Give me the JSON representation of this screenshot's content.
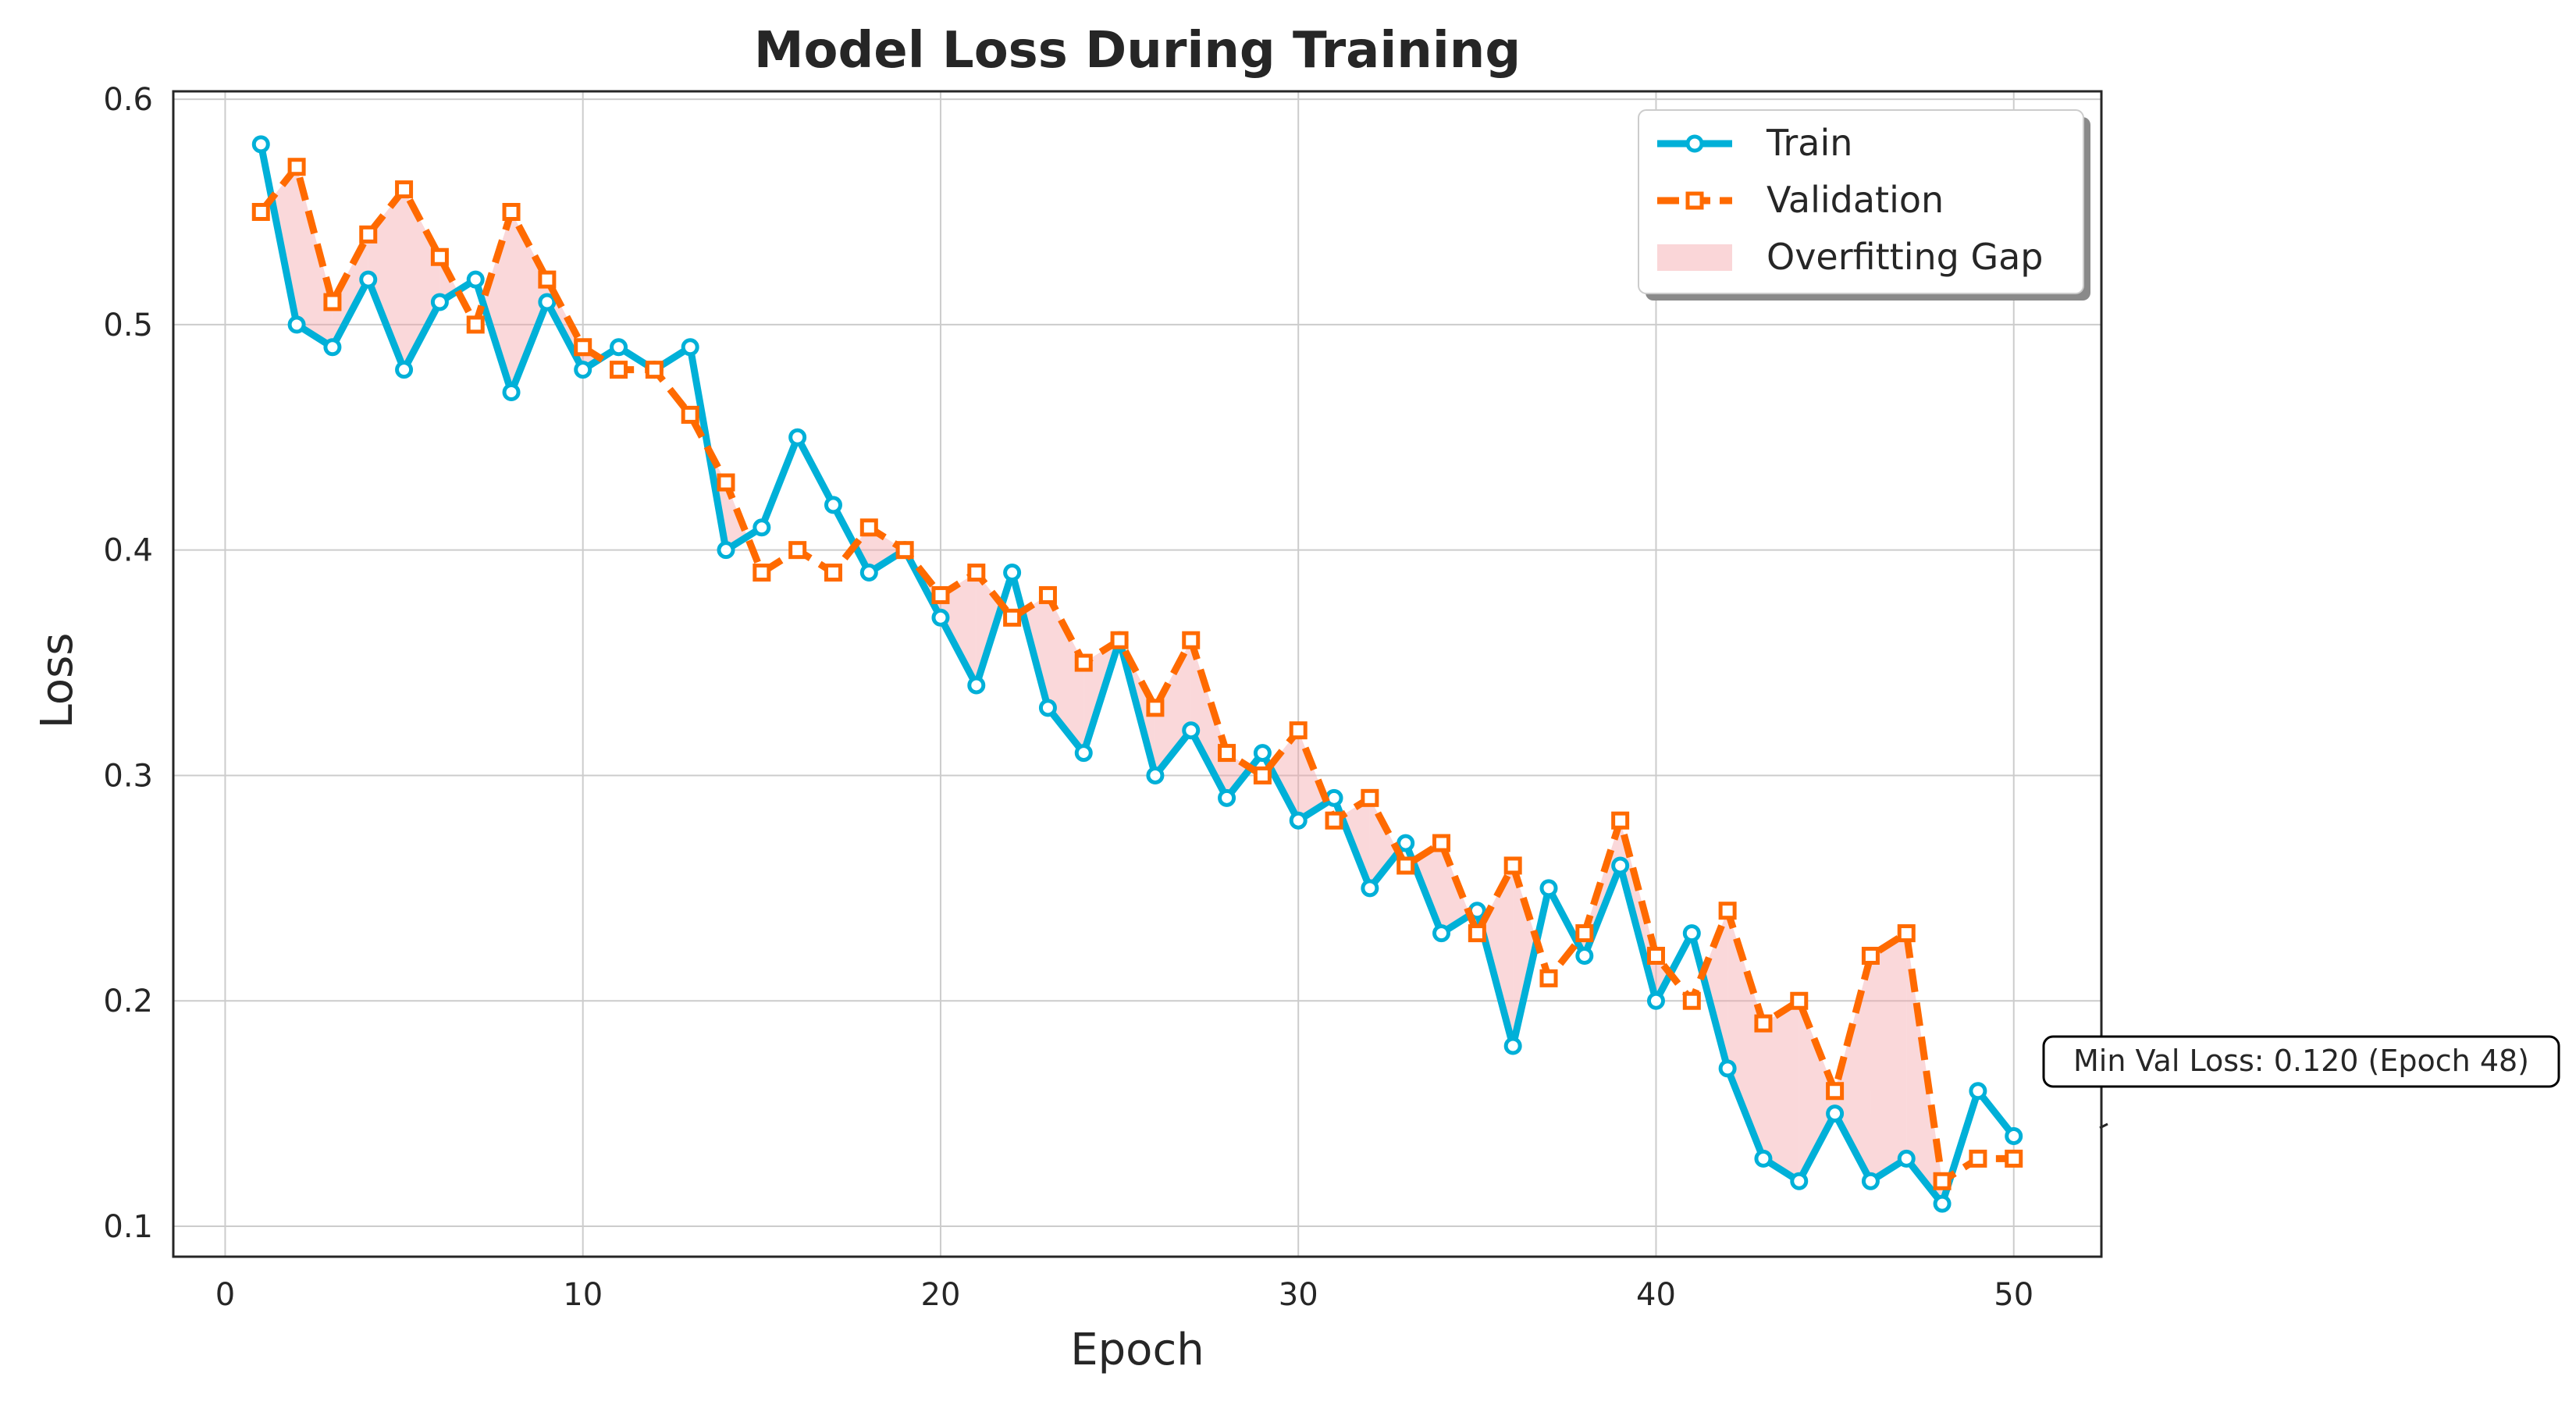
{
  "chart_data": {
    "type": "line",
    "title": "Model Loss During Training",
    "xlabel": "Epoch",
    "ylabel": "Loss",
    "xlim": [
      -1.45,
      52.45
    ],
    "ylim": [
      0.0865,
      0.6035
    ],
    "xticks": [
      0,
      10,
      20,
      30,
      40,
      50
    ],
    "yticks": [
      0.1,
      0.2,
      0.3,
      0.4,
      0.5,
      0.6
    ],
    "xtick_labels": [
      "0",
      "10",
      "20",
      "30",
      "40",
      "50"
    ],
    "ytick_labels": [
      "0.1",
      "0.2",
      "0.3",
      "0.4",
      "0.5",
      "0.6"
    ],
    "grid": true,
    "legend_position": "top-right",
    "x": [
      1,
      2,
      3,
      4,
      5,
      6,
      7,
      8,
      9,
      10,
      11,
      12,
      13,
      14,
      15,
      16,
      17,
      18,
      19,
      20,
      21,
      22,
      23,
      24,
      25,
      26,
      27,
      28,
      29,
      30,
      31,
      32,
      33,
      34,
      35,
      36,
      37,
      38,
      39,
      40,
      41,
      42,
      43,
      44,
      45,
      46,
      47,
      48,
      49,
      50
    ],
    "series": [
      {
        "name": "Train",
        "color": "#00b0d8",
        "marker": "circle",
        "values": [
          0.58,
          0.5,
          0.49,
          0.52,
          0.48,
          0.51,
          0.52,
          0.47,
          0.51,
          0.48,
          0.49,
          0.48,
          0.49,
          0.4,
          0.41,
          0.45,
          0.42,
          0.39,
          0.4,
          0.37,
          0.34,
          0.39,
          0.33,
          0.31,
          0.36,
          0.3,
          0.32,
          0.29,
          0.31,
          0.28,
          0.29,
          0.25,
          0.27,
          0.23,
          0.24,
          0.18,
          0.25,
          0.22,
          0.26,
          0.2,
          0.23,
          0.17,
          0.13,
          0.12,
          0.15,
          0.12,
          0.13,
          0.11,
          0.16,
          0.14
        ]
      },
      {
        "name": "Validation",
        "color": "#ff6a00",
        "marker": "square",
        "values": [
          0.55,
          0.57,
          0.51,
          0.54,
          0.56,
          0.53,
          0.5,
          0.55,
          0.52,
          0.49,
          0.48,
          0.48,
          0.46,
          0.43,
          0.39,
          0.4,
          0.39,
          0.41,
          0.4,
          0.38,
          0.39,
          0.37,
          0.38,
          0.35,
          0.36,
          0.33,
          0.36,
          0.31,
          0.3,
          0.32,
          0.28,
          0.29,
          0.26,
          0.27,
          0.23,
          0.26,
          0.21,
          0.23,
          0.28,
          0.22,
          0.2,
          0.24,
          0.19,
          0.2,
          0.16,
          0.22,
          0.23,
          0.12,
          0.13,
          0.13
        ]
      }
    ],
    "fill": {
      "name": "Overfitting Gap",
      "color": "#f4a3a8",
      "condition": "validation > train"
    },
    "annotation": {
      "text": "Min Val Loss: 0.120 (Epoch 48)",
      "x": 48,
      "y": 0.12
    },
    "legend": [
      "Train",
      "Validation",
      "Overfitting Gap"
    ]
  }
}
